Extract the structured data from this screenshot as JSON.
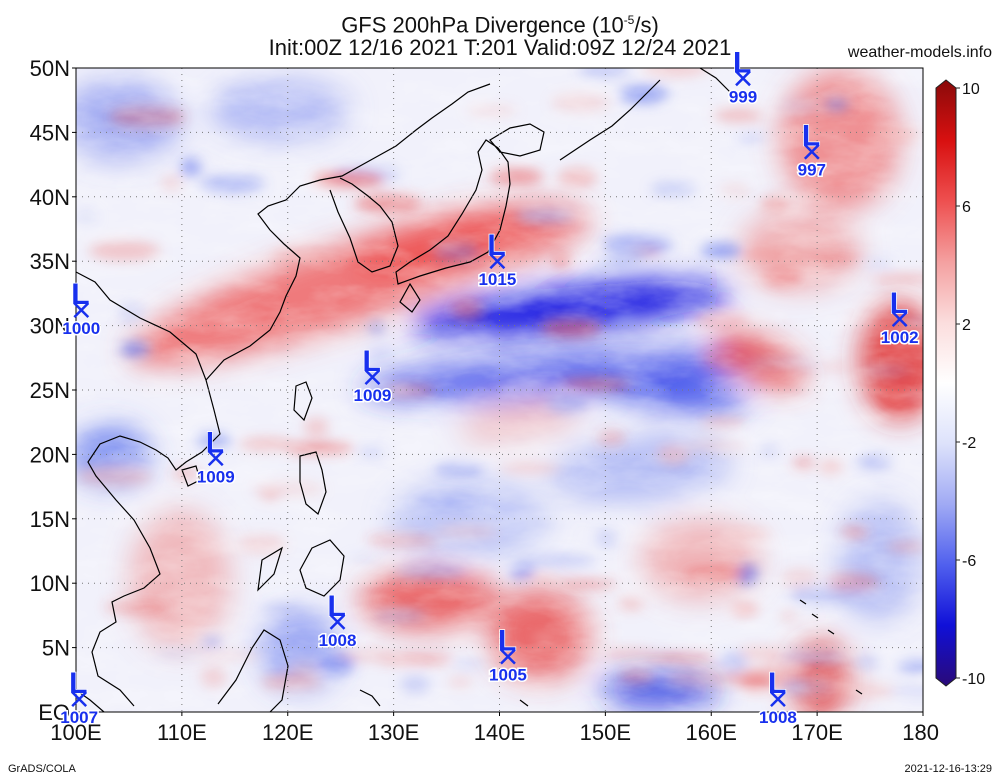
{
  "header": {
    "title": "GFS 200hPa Divergence (10",
    "title_sup": "-5",
    "title_end": "/s)",
    "subtitle": "Init:00Z 12/16 2021 T:201 Valid:09Z 12/24 2021",
    "site": "weather-models.info"
  },
  "footer": {
    "credit": "GrADS/COLA",
    "timestamp": "2021-12-16-13:29"
  },
  "map": {
    "lat_labels": [
      "50N",
      "45N",
      "40N",
      "35N",
      "30N",
      "25N",
      "20N",
      "15N",
      "10N",
      "5N",
      "EQ"
    ],
    "lon_labels": [
      "100E",
      "110E",
      "120E",
      "130E",
      "140E",
      "150E",
      "160E",
      "170E",
      "180"
    ],
    "lat_values": [
      50,
      45,
      40,
      35,
      30,
      25,
      20,
      15,
      10,
      5,
      0
    ],
    "lon_values": [
      100,
      110,
      120,
      130,
      140,
      150,
      160,
      170,
      180
    ],
    "extent": {
      "lon": [
        100,
        180
      ],
      "lat": [
        0,
        50
      ]
    }
  },
  "colorbar": {
    "tick_labels": [
      "10",
      "6",
      "2",
      "-2",
      "-6",
      "-10"
    ],
    "tick_values": [
      10,
      6,
      2,
      -2,
      -6,
      -10
    ],
    "colors": [
      "#2a0a78",
      "#1010d8",
      "#5060ee",
      "#a0aaf4",
      "#dde2fb",
      "#ffffff",
      "#fbdddd",
      "#f4a0a0",
      "#ee5050",
      "#d81010",
      "#8a0a0a"
    ]
  },
  "lows": [
    {
      "lon": 163.0,
      "lat": 49.2,
      "pressure": "999"
    },
    {
      "lon": 169.5,
      "lat": 43.5,
      "pressure": "997"
    },
    {
      "lon": 139.8,
      "lat": 35.0,
      "pressure": "1015"
    },
    {
      "lon": 100.5,
      "lat": 31.2,
      "pressure": "1000"
    },
    {
      "lon": 177.8,
      "lat": 30.5,
      "pressure": "1002"
    },
    {
      "lon": 128.0,
      "lat": 26.0,
      "pressure": "1009"
    },
    {
      "lon": 113.2,
      "lat": 19.7,
      "pressure": "1009"
    },
    {
      "lon": 124.7,
      "lat": 7.0,
      "pressure": "1008"
    },
    {
      "lon": 140.8,
      "lat": 4.3,
      "pressure": "1005"
    },
    {
      "lon": 100.3,
      "lat": 1.0,
      "pressure": "1007"
    },
    {
      "lon": 166.3,
      "lat": 1.0,
      "pressure": "1008"
    }
  ]
}
